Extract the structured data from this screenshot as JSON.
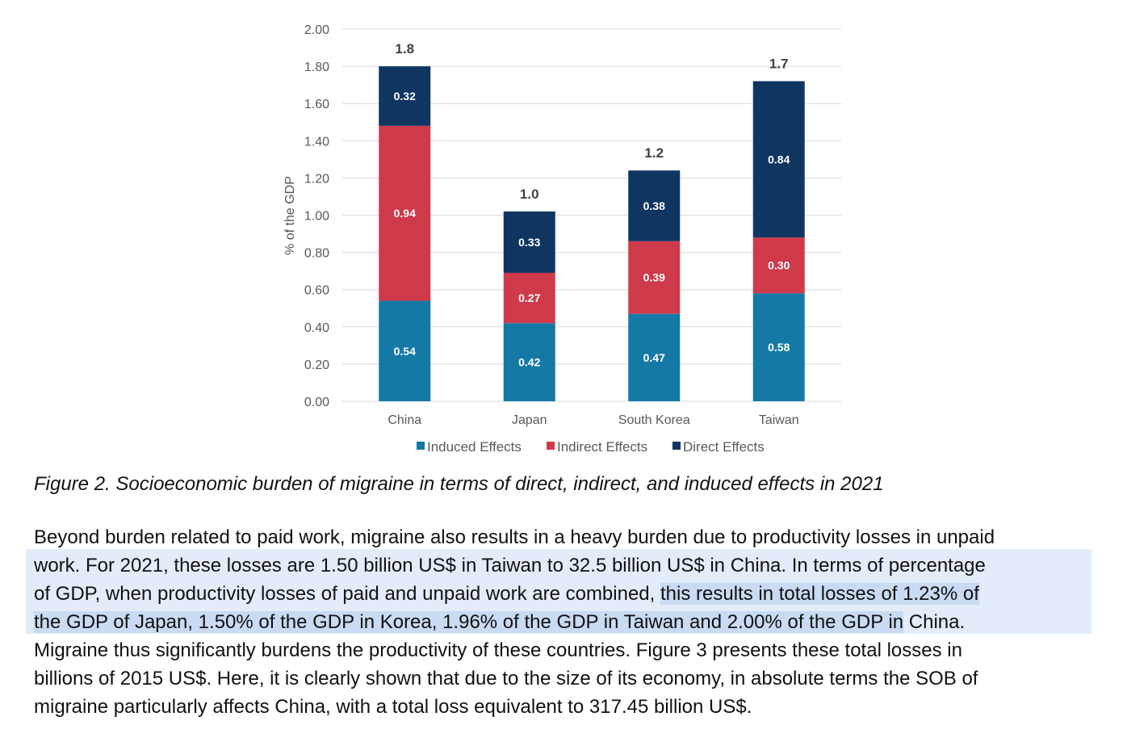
{
  "chart_data": {
    "type": "bar",
    "stacked": true,
    "categories": [
      "China",
      "Japan",
      "South Korea",
      "Taiwan"
    ],
    "series": [
      {
        "name": "Induced Effects",
        "color": "#1579a6",
        "values": [
          0.54,
          0.42,
          0.47,
          0.58
        ]
      },
      {
        "name": "Indirect Effects",
        "color": "#cf3a4b",
        "values": [
          0.94,
          0.27,
          0.39,
          0.3
        ]
      },
      {
        "name": "Direct Effects",
        "color": "#0e3661",
        "values": [
          0.32,
          0.33,
          0.38,
          0.84
        ]
      }
    ],
    "totals": [
      "1.8",
      "1.0",
      "1.2",
      "1.7"
    ],
    "series_value_labels": [
      [
        "0.54",
        "0.42",
        "0.47",
        "0.58"
      ],
      [
        "0.94",
        "0.27",
        "0.39",
        "0.30"
      ],
      [
        "0.32",
        "0.33",
        "0.38",
        "0.84"
      ]
    ],
    "ylabel": "% of the GDP",
    "xlabel": "",
    "ylim": [
      0,
      2.0
    ],
    "yticks": [
      "0.00",
      "0.20",
      "0.40",
      "0.60",
      "0.80",
      "1.00",
      "1.20",
      "1.40",
      "1.60",
      "1.80",
      "2.00"
    ],
    "grid": true,
    "legend_position": "bottom"
  },
  "caption": "Figure 2. Socioeconomic burden of migraine in terms of direct, indirect, and induced effects in 2021",
  "paragraph": {
    "l1": "Beyond burden related to paid work, migraine also results in a heavy burden due to productivity losses in unpaid",
    "l2": "work. For 2021, these losses are 1.50 billion US$ in Taiwan to 32.5 billion US$ in China. In terms of percentage",
    "l3a": "of GDP, when productivity losses of paid and unpaid work are combined, ",
    "l3b": "this results in total losses of 1.23% of",
    "l4a": "the GDP of Japan, 1.50% of the GDP in Korea, 1.96% of the GDP in Taiwan and 2.00% of the GDP in",
    "l4b": " China.",
    "l5": "Migraine thus significantly burdens the productivity of these countries. Figure 3 presents these total losses in",
    "l6": "billions of 2015 US$. Here, it is clearly shown that due to the size of its economy, in absolute terms the SOB of",
    "l7": "migraine particularly affects China, with a total loss equivalent to 317.45 billion US$."
  }
}
